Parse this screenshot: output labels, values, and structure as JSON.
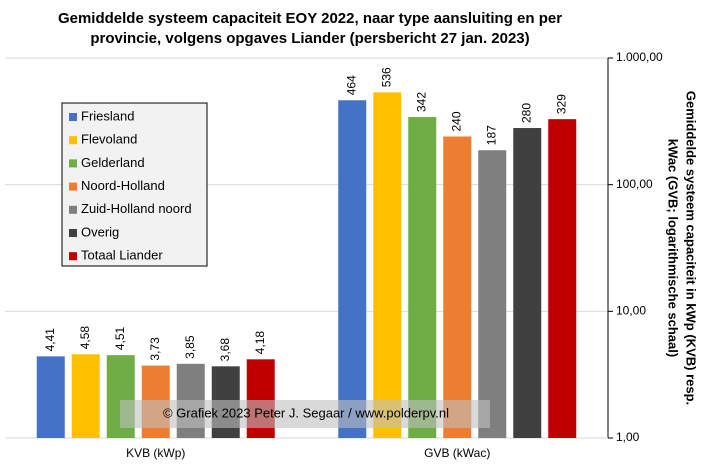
{
  "chart_data": {
    "type": "bar",
    "title": [
      "Gemiddelde systeem capaciteit EOY 2022, naar type aansluiting  en per",
      "provincie,  volgens opgaves Liander (persbericht 27 jan. 2023)"
    ],
    "ylabel": [
      "Gemiddelde  systeem capaciteit in kWp  (KVB)  resp.",
      "kWac (GVB; logarithmische  schaal)"
    ],
    "annotation": "© Grafiek  2023  Peter J. Segaar / www.polderpv.nl",
    "categories": [
      "KVB (kWp)",
      "GVB (kWac)"
    ],
    "log_scale": true,
    "grid": true,
    "yaxis_side": "right",
    "legend": "upper left",
    "ylim": [
      1,
      1000
    ],
    "yticks": [
      {
        "value": 1,
        "label": "1,00"
      },
      {
        "value": 10,
        "label": "10,00"
      },
      {
        "value": 100,
        "label": "100,00"
      },
      {
        "value": 1000,
        "label": "1.000,00"
      }
    ],
    "series": [
      {
        "name": "Friesland",
        "color": "#4472c4",
        "values": [
          4.41,
          464
        ],
        "value_labels": [
          "4,41",
          "464"
        ]
      },
      {
        "name": "Flevoland",
        "color": "#ffc000",
        "values": [
          4.58,
          536
        ],
        "value_labels": [
          "4,58",
          "536"
        ]
      },
      {
        "name": "Gelderland",
        "color": "#70ad47",
        "values": [
          4.51,
          342
        ],
        "value_labels": [
          "4,51",
          "342"
        ]
      },
      {
        "name": "Noord-Holland",
        "color": "#ed7d31",
        "values": [
          3.73,
          240
        ],
        "value_labels": [
          "3,73",
          "240"
        ]
      },
      {
        "name": "Zuid-Holland noord",
        "color": "#7f7f7f",
        "values": [
          3.85,
          187
        ],
        "value_labels": [
          "3,85",
          "187"
        ]
      },
      {
        "name": "Overig",
        "color": "#404040",
        "values": [
          3.68,
          280
        ],
        "value_labels": [
          "3,68",
          "280"
        ]
      },
      {
        "name": "Totaal Liander",
        "color": "#c00000",
        "values": [
          4.18,
          329
        ],
        "value_labels": [
          "4,18",
          "329"
        ]
      }
    ]
  }
}
